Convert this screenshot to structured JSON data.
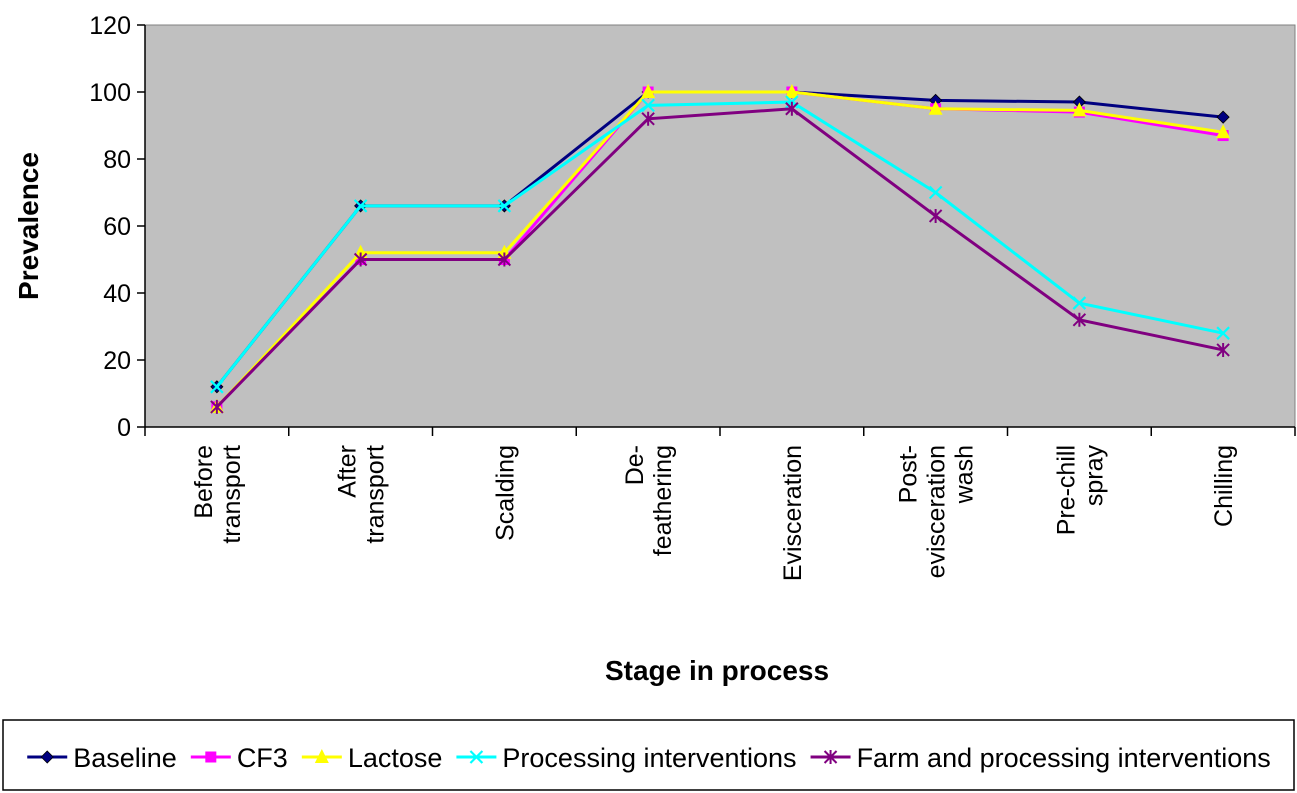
{
  "chart_data": {
    "type": "line",
    "title": "",
    "xlabel": "Stage in process",
    "ylabel": "Prevalence",
    "ylim": [
      0,
      120
    ],
    "yticks": [
      0,
      20,
      40,
      60,
      80,
      100,
      120
    ],
    "grid": false,
    "plot_background": "#C0C0C0",
    "legend_position": "bottom",
    "categories": [
      [
        "Before",
        "transport"
      ],
      [
        "After",
        "transport"
      ],
      [
        "Scalding"
      ],
      [
        "De-",
        "feathering"
      ],
      [
        "Evisceration"
      ],
      [
        "Post-",
        "evisceration",
        "wash"
      ],
      [
        "Pre-chill",
        "spray"
      ],
      [
        "Chilling"
      ]
    ],
    "series": [
      {
        "name": "Baseline",
        "color": "#000080",
        "marker": "diamond",
        "values": [
          12,
          66,
          66,
          100,
          100,
          97.5,
          97,
          92.5
        ]
      },
      {
        "name": "CF3",
        "color": "#FF00FF",
        "marker": "square",
        "values": [
          6,
          50,
          50,
          100,
          100,
          95,
          94,
          87
        ]
      },
      {
        "name": "Lactose",
        "color": "#FFFF00",
        "marker": "triangle",
        "values": [
          6,
          52,
          52,
          100,
          100,
          95,
          94.5,
          88
        ]
      },
      {
        "name": "Processing interventions",
        "color": "#00FFFF",
        "marker": "x",
        "values": [
          12,
          66,
          66,
          96,
          97,
          70,
          37,
          28
        ]
      },
      {
        "name": "Farm and processing interventions",
        "color": "#800080",
        "marker": "star",
        "values": [
          6,
          50,
          50,
          92,
          95,
          63,
          32,
          23
        ]
      }
    ]
  }
}
